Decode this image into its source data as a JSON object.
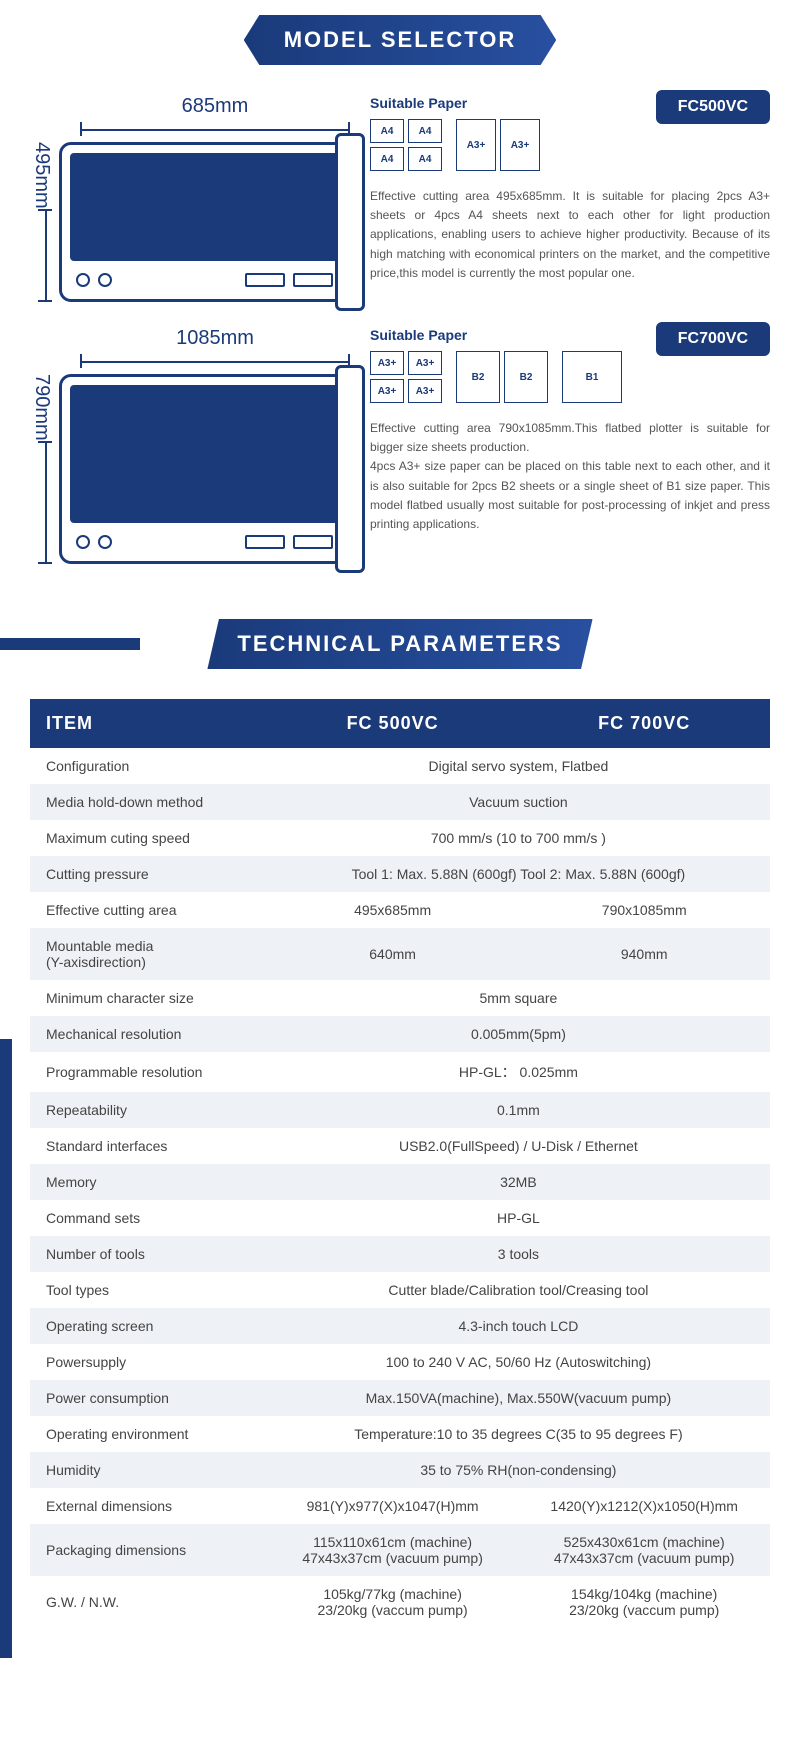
{
  "banners": {
    "model_selector": "MODEL SELECTOR",
    "tech_params": "TECHNICAL PARAMETERS"
  },
  "models": [
    {
      "badge": "FC500VC",
      "width_label": "685mm",
      "height_label": "495mm",
      "device_class": "d1",
      "sp_title": "Suitable Paper",
      "paper_groups": [
        {
          "grid": "g2x2",
          "cells": [
            {
              "t": "A4",
              "c": "s"
            },
            {
              "t": "A4",
              "c": "s"
            },
            {
              "t": "A4",
              "c": "s"
            },
            {
              "t": "A4",
              "c": "s"
            }
          ]
        },
        {
          "grid": "g1x2",
          "cells": [
            {
              "t": "A3+",
              "c": "m"
            },
            {
              "t": "A3+",
              "c": "m"
            }
          ]
        }
      ],
      "desc": "Effective cutting area 495x685mm. It is suitable for placing 2pcs A3+ sheets or 4pcs A4 sheets next to each other for light production applications, enabling users to achieve higher productivity. Because of its high matching with economical printers on the market, and the competitive price,this model is currently the most popular one."
    },
    {
      "badge": "FC700VC",
      "width_label": "1085mm",
      "height_label": "790mm",
      "device_class": "d2",
      "sp_title": "Suitable Paper",
      "paper_groups": [
        {
          "grid": "g2x2",
          "cells": [
            {
              "t": "A3+",
              "c": "s"
            },
            {
              "t": "A3+",
              "c": "s"
            },
            {
              "t": "A3+",
              "c": "s"
            },
            {
              "t": "A3+",
              "c": "s"
            }
          ]
        },
        {
          "grid": "g1x2",
          "cells": [
            {
              "t": "B2",
              "c": "l"
            },
            {
              "t": "B2",
              "c": "l"
            }
          ]
        },
        {
          "grid": "g1x1",
          "cells": [
            {
              "t": "B1",
              "c": "xl"
            }
          ]
        }
      ],
      "desc": "Effective cutting area 790x1085mm.This flatbed plotter is suitable for bigger size sheets production.\n4pcs A3+ size paper can be placed on this table next to each other, and it is also suitable for 2pcs B2 sheets or a single sheet of B1 size paper. This model flatbed usually most suitable for post-processing of inkjet and press printing applications."
    }
  ],
  "table": {
    "headers": [
      "ITEM",
      "FC 500VC",
      "FC 700VC"
    ],
    "rows": [
      {
        "label": "Configuration",
        "merged": "Digital servo system, Flatbed"
      },
      {
        "label": "Media hold-down method",
        "merged": "Vacuum suction"
      },
      {
        "label": "Maximum cuting speed",
        "merged": "700 mm/s (10 to 700 mm/s )"
      },
      {
        "label": "Cutting pressure",
        "merged": "Tool 1: Max. 5.88N (600gf)  Tool 2: Max. 5.88N (600gf)"
      },
      {
        "label": "Effective cutting area",
        "a": "495x685mm",
        "b": "790x1085mm"
      },
      {
        "label": "Mountable media\n(Y-axisdirection)",
        "a": "640mm",
        "b": "940mm"
      },
      {
        "label": "Minimum character size",
        "merged": "5mm square"
      },
      {
        "label": "Mechanical resolution",
        "merged": "0.005mm(5pm)"
      },
      {
        "label": "Programmable resolution",
        "merged": "HP-GL： 0.025mm"
      },
      {
        "label": "Repeatability",
        "merged": "0.1mm"
      },
      {
        "label": "Standard interfaces",
        "merged": "USB2.0(FullSpeed) / U-Disk / Ethernet"
      },
      {
        "label": "Memory",
        "merged": "32MB"
      },
      {
        "label": "Command sets",
        "merged": "HP-GL"
      },
      {
        "label": "Number of tools",
        "merged": "3 tools"
      },
      {
        "label": "Tool types",
        "merged": "Cutter blade/Calibration tool/Creasing tool"
      },
      {
        "label": "Operating screen",
        "merged": "4.3-inch touch LCD"
      },
      {
        "label": "Powersupply",
        "merged": "100 to 240 V AC,   50/60 Hz (Autoswitching)"
      },
      {
        "label": "Power consumption",
        "merged": "Max.150VA(machine),  Max.550W(vacuum pump)"
      },
      {
        "label": "Operating environment",
        "merged": "Temperature:10 to 35 degrees C(35 to 95 degrees F)"
      },
      {
        "label": "Humidity",
        "merged": "35 to 75% RH(non-condensing)"
      },
      {
        "label": "External dimensions",
        "a": "981(Y)x977(X)x1047(H)mm",
        "b": "1420(Y)x1212(X)x1050(H)mm"
      },
      {
        "label": "Packaging dimensions",
        "a": "115x110x61cm (machine)\n47x43x37cm (vacuum pump)",
        "b": "525x430x61cm (machine)\n47x43x37cm (vacuum pump)"
      },
      {
        "label": "G.W. / N.W.",
        "a": "105kg/77kg (machine)\n23/20kg (vaccum pump)",
        "b": "154kg/104kg (machine)\n23/20kg (vaccum pump)"
      }
    ]
  }
}
